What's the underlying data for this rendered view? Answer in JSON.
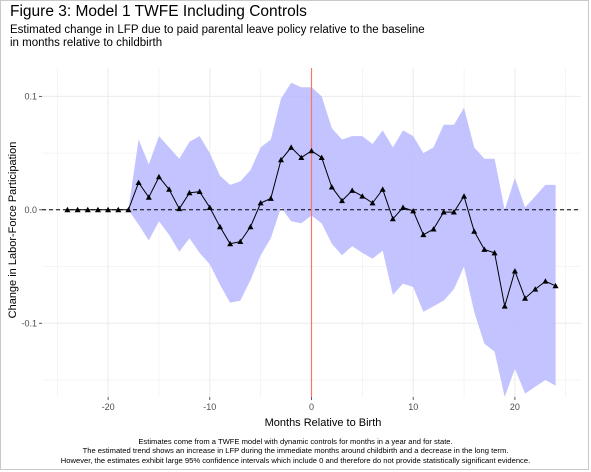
{
  "figure": {
    "title": "Figure 3: Model 1 TWFE Including Controls",
    "subtitle_lines": [
      "Estimated change in LFP due to paid parental leave policy relative to the baseline",
      "in months relative to childbirth"
    ],
    "caption_lines": [
      "Estimates come from a TWFE model with dynamic controls for months in a year and for state.",
      "The estimated trend shows an increase in LFP during the immediate months around childbirth and a decrease in the long term.",
      "However, the estimates exhibit large 95% confidence intervals which include 0 and therefore do not provide statistically significant evidence."
    ]
  },
  "chart_data": {
    "type": "line",
    "xlabel": "Months Relative to Birth",
    "ylabel": "Change in Labor-Force Participation",
    "xlim": [
      -26.5,
      26.5
    ],
    "ylim": [
      -0.165,
      0.125
    ],
    "x_ticks": [
      -20,
      -10,
      0,
      10,
      20
    ],
    "x_tick_labels": [
      "-20",
      "-10",
      "0",
      "10",
      "20"
    ],
    "y_ticks": [
      -0.1,
      0.0,
      0.1
    ],
    "y_tick_labels": [
      "-0.1",
      "0.0",
      "0.1"
    ],
    "grid": true,
    "reference_lines": {
      "horizontal_dashed_y": 0,
      "vertical_x": 0,
      "vertical_color": "#f8766d"
    },
    "colors": {
      "ribbon": "#b8b8ff",
      "line": "#000000",
      "grid": "#ebebeb"
    },
    "series": [
      {
        "x": [
          -24,
          -23,
          -22,
          -21,
          -20,
          -19,
          -18,
          -17,
          -16,
          -15,
          -14,
          -13,
          -12,
          -11,
          -10,
          -9,
          -8,
          -7,
          -6,
          -5,
          -4,
          -3,
          -2,
          -1,
          0,
          1,
          2,
          3,
          4,
          5,
          6,
          7,
          8,
          9,
          10,
          11,
          12,
          13,
          14,
          15,
          16,
          17,
          18,
          19,
          20,
          21,
          22,
          23,
          24
        ],
        "y": [
          0,
          0,
          0,
          0,
          0,
          0,
          0,
          0.024,
          0.011,
          0.029,
          0.018,
          0.001,
          0.015,
          0.016,
          0.002,
          -0.015,
          -0.03,
          -0.028,
          -0.015,
          0.006,
          0.01,
          0.044,
          0.055,
          0.046,
          0.052,
          0.046,
          0.02,
          0.008,
          0.017,
          0.012,
          0.006,
          0.018,
          -0.008,
          0.002,
          -0.001,
          -0.022,
          -0.017,
          -0.002,
          -0.002,
          0.012,
          -0.019,
          -0.035,
          -0.038,
          -0.085,
          -0.054,
          -0.078,
          -0.07,
          -0.063,
          -0.067
        ],
        "ci_low": [
          0,
          0,
          0,
          0,
          0,
          0,
          0,
          -0.013,
          -0.027,
          -0.01,
          -0.022,
          -0.037,
          -0.025,
          -0.038,
          -0.048,
          -0.066,
          -0.082,
          -0.08,
          -0.062,
          -0.04,
          -0.025,
          0.002,
          -0.01,
          -0.012,
          -0.005,
          -0.012,
          -0.03,
          -0.04,
          -0.032,
          -0.038,
          -0.043,
          -0.036,
          -0.075,
          -0.065,
          -0.068,
          -0.09,
          -0.085,
          -0.08,
          -0.07,
          -0.05,
          -0.09,
          -0.118,
          -0.125,
          -0.165,
          -0.14,
          -0.162,
          -0.156,
          -0.15,
          -0.155
        ],
        "ci_high": [
          0,
          0,
          0,
          0,
          0,
          0,
          0,
          0.062,
          0.04,
          0.065,
          0.055,
          0.045,
          0.06,
          0.065,
          0.05,
          0.03,
          0.022,
          0.025,
          0.035,
          0.055,
          0.062,
          0.098,
          0.112,
          0.108,
          0.108,
          0.1,
          0.072,
          0.062,
          0.065,
          0.065,
          0.058,
          0.07,
          0.055,
          0.07,
          0.065,
          0.05,
          0.055,
          0.075,
          0.075,
          0.09,
          0.055,
          0.045,
          0.045,
          0.0,
          0.028,
          0.002,
          0.012,
          0.022,
          0.022
        ]
      }
    ]
  }
}
